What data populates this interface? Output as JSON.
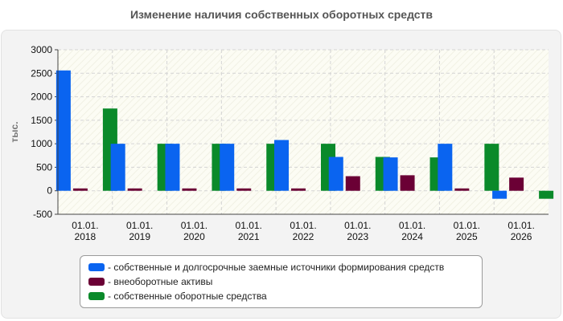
{
  "chart_data": {
    "type": "bar",
    "title": "Изменение наличия собственных оборотных средств",
    "ylabel": "тыс.",
    "xlabel": "",
    "ylim": [
      -500,
      3000
    ],
    "yticks": [
      -500,
      0,
      500,
      1000,
      1500,
      2000,
      2500,
      3000
    ],
    "grid": true,
    "legend_position": "bottom",
    "categories": [
      [
        "01.01.",
        "2018"
      ],
      [
        "01.01.",
        "2019"
      ],
      [
        "01.01.",
        "2020"
      ],
      [
        "01.01.",
        "2021"
      ],
      [
        "01.01.",
        "2022"
      ],
      [
        "01.01.",
        "2023"
      ],
      [
        "01.01.",
        "2024"
      ],
      [
        "01.01.",
        "2025"
      ],
      [
        "01.01.",
        "2026"
      ]
    ],
    "series": [
      {
        "name": "- собственные и долгосрочные заемные источники формирования средств",
        "color": "#0a64f0",
        "values": [
          2560,
          1000,
          1000,
          1000,
          1080,
          720,
          710,
          1000,
          -170
        ]
      },
      {
        "name": "- внеоборотные активы",
        "color": "#6b0035",
        "values": [
          50,
          50,
          50,
          50,
          50,
          310,
          330,
          50,
          280
        ]
      },
      {
        "name": "- собственные оборотные средства",
        "color": "#0a8a2a",
        "values": [
          1750,
          1000,
          1000,
          1000,
          1000,
          720,
          710,
          1000,
          -170
        ]
      }
    ]
  }
}
